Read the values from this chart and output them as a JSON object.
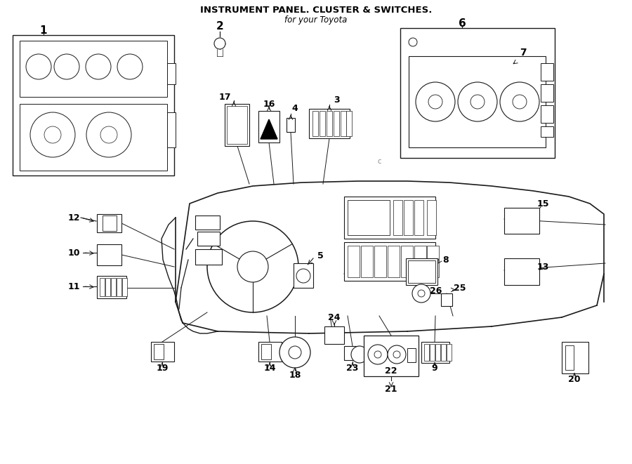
{
  "title": "INSTRUMENT PANEL. CLUSTER & SWITCHES.",
  "subtitle": "for your Toyota",
  "bg_color": "#ffffff",
  "line_color": "#1a1a1a",
  "fig_width": 9.0,
  "fig_height": 6.61,
  "dpi": 100
}
